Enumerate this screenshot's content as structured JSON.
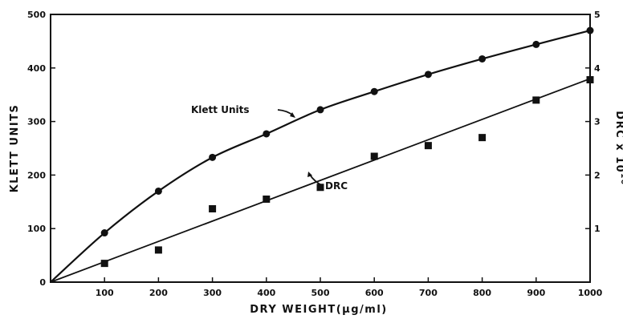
{
  "chart_data": {
    "type": "line",
    "title": "",
    "xlabel": "DRY WEIGHT(µg/ml)",
    "ylabel": "KLETT UNITS",
    "ylabel_right": "DRC x 10",
    "ylabel_right_exp": "10",
    "xlim": [
      0,
      1000
    ],
    "ylim": [
      0,
      500
    ],
    "ylim_right": [
      0,
      5
    ],
    "x_ticks": [
      100,
      200,
      300,
      400,
      500,
      600,
      700,
      800,
      900,
      1000
    ],
    "y_ticks": [
      0,
      100,
      200,
      300,
      400,
      500
    ],
    "y_ticks_right": [
      1,
      2,
      3,
      4,
      5
    ],
    "grid": false,
    "series": [
      {
        "name": "Klett Units",
        "axis": "left",
        "marker": "circle",
        "x": [
          0,
          100,
          200,
          300,
          400,
          500,
          600,
          700,
          800,
          900,
          1000
        ],
        "values": [
          0,
          92,
          170,
          233,
          277,
          322,
          356,
          388,
          417,
          444,
          470
        ]
      },
      {
        "name": "DRC",
        "axis": "right",
        "marker": "square",
        "x": [
          0,
          100,
          200,
          300,
          400,
          500,
          600,
          700,
          800,
          900,
          1000
        ],
        "values": [
          0,
          0.35,
          0.6,
          1.37,
          1.55,
          1.77,
          2.35,
          2.55,
          2.7,
          3.4,
          3.78
        ]
      }
    ],
    "fit_lines": {
      "Klett Units": [
        0,
        92,
        170,
        233,
        277,
        322,
        356,
        388,
        417,
        444,
        470
      ],
      "DRC": [
        0,
        3.8
      ]
    }
  }
}
